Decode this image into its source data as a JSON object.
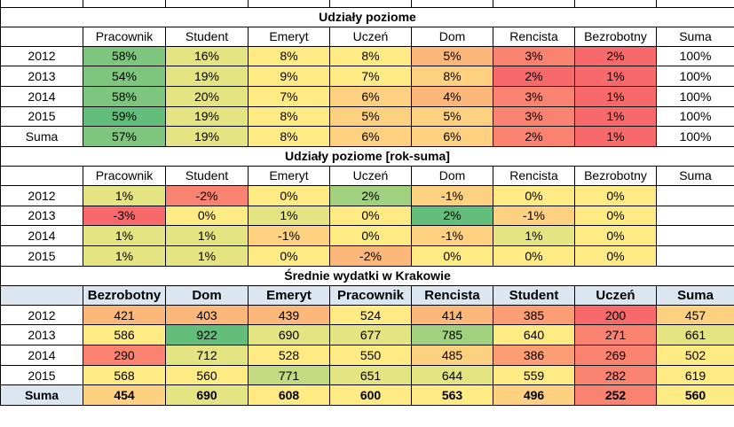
{
  "colors": {
    "g1": "#63be7b",
    "g2": "#7ec57d",
    "g3": "#a1d07f",
    "g4": "#c3da81",
    "y1": "#e5e483",
    "y2": "#ffeb84",
    "o1": "#fdd17f",
    "o2": "#fcb77a",
    "o3": "#fb9d75",
    "r1": "#f98370",
    "r2": "#f8696b",
    "w": "#ffffff",
    "sum": "#dce6f1"
  },
  "tables": [
    {
      "title": "Udziały poziome",
      "headers": [
        "Pracownik",
        "Student",
        "Emeryt",
        "Uczeń",
        "Dom",
        "Rencista",
        "Bezrobotny",
        "Suma"
      ],
      "header_style": "plain",
      "rows": [
        {
          "label": "2012",
          "cells": [
            {
              "v": "58%",
              "c": "g2"
            },
            {
              "v": "16%",
              "c": "y1"
            },
            {
              "v": "8%",
              "c": "y2"
            },
            {
              "v": "8%",
              "c": "y2"
            },
            {
              "v": "5%",
              "c": "o2"
            },
            {
              "v": "3%",
              "c": "r1"
            },
            {
              "v": "2%",
              "c": "r2"
            },
            {
              "v": "100%",
              "c": "w"
            }
          ]
        },
        {
          "label": "2013",
          "cells": [
            {
              "v": "54%",
              "c": "g2"
            },
            {
              "v": "19%",
              "c": "y1"
            },
            {
              "v": "9%",
              "c": "y2"
            },
            {
              "v": "7%",
              "c": "y2"
            },
            {
              "v": "8%",
              "c": "o1"
            },
            {
              "v": "2%",
              "c": "r2"
            },
            {
              "v": "1%",
              "c": "r2"
            },
            {
              "v": "100%",
              "c": "w"
            }
          ]
        },
        {
          "label": "2014",
          "cells": [
            {
              "v": "58%",
              "c": "g2"
            },
            {
              "v": "20%",
              "c": "y1"
            },
            {
              "v": "7%",
              "c": "y2"
            },
            {
              "v": "6%",
              "c": "o1"
            },
            {
              "v": "4%",
              "c": "o2"
            },
            {
              "v": "3%",
              "c": "r1"
            },
            {
              "v": "1%",
              "c": "r2"
            },
            {
              "v": "100%",
              "c": "w"
            }
          ]
        },
        {
          "label": "2015",
          "cells": [
            {
              "v": "59%",
              "c": "g1"
            },
            {
              "v": "19%",
              "c": "y1"
            },
            {
              "v": "8%",
              "c": "y2"
            },
            {
              "v": "5%",
              "c": "o1"
            },
            {
              "v": "5%",
              "c": "o1"
            },
            {
              "v": "3%",
              "c": "r1"
            },
            {
              "v": "1%",
              "c": "r2"
            },
            {
              "v": "100%",
              "c": "w"
            }
          ]
        },
        {
          "label": "Suma",
          "cells": [
            {
              "v": "57%",
              "c": "g2"
            },
            {
              "v": "19%",
              "c": "y1"
            },
            {
              "v": "8%",
              "c": "y2"
            },
            {
              "v": "6%",
              "c": "o1"
            },
            {
              "v": "6%",
              "c": "o1"
            },
            {
              "v": "2%",
              "c": "r1"
            },
            {
              "v": "1%",
              "c": "r2"
            },
            {
              "v": "100%",
              "c": "w"
            }
          ]
        }
      ]
    },
    {
      "title": "Udziały poziome [rok-suma]",
      "headers": [
        "Pracownik",
        "Student",
        "Emeryt",
        "Uczeń",
        "Dom",
        "Rencista",
        "Bezrobotny",
        "Suma"
      ],
      "header_style": "plain",
      "rows": [
        {
          "label": "2012",
          "cells": [
            {
              "v": "1%",
              "c": "y1"
            },
            {
              "v": "-2%",
              "c": "r1"
            },
            {
              "v": "0%",
              "c": "y2"
            },
            {
              "v": "2%",
              "c": "g3"
            },
            {
              "v": "-1%",
              "c": "o1"
            },
            {
              "v": "0%",
              "c": "y2"
            },
            {
              "v": "0%",
              "c": "y2"
            },
            {
              "v": "",
              "c": "w"
            }
          ]
        },
        {
          "label": "2013",
          "cells": [
            {
              "v": "-3%",
              "c": "r2"
            },
            {
              "v": "0%",
              "c": "y2"
            },
            {
              "v": "1%",
              "c": "y1"
            },
            {
              "v": "0%",
              "c": "y2"
            },
            {
              "v": "2%",
              "c": "g1"
            },
            {
              "v": "-1%",
              "c": "o1"
            },
            {
              "v": "0%",
              "c": "y2"
            },
            {
              "v": "",
              "c": "w"
            }
          ]
        },
        {
          "label": "2014",
          "cells": [
            {
              "v": "1%",
              "c": "y1"
            },
            {
              "v": "1%",
              "c": "y1"
            },
            {
              "v": "-1%",
              "c": "o1"
            },
            {
              "v": "0%",
              "c": "y2"
            },
            {
              "v": "-1%",
              "c": "o1"
            },
            {
              "v": "1%",
              "c": "y1"
            },
            {
              "v": "0%",
              "c": "y2"
            },
            {
              "v": "",
              "c": "w"
            }
          ]
        },
        {
          "label": "2015",
          "cells": [
            {
              "v": "1%",
              "c": "y1"
            },
            {
              "v": "1%",
              "c": "y1"
            },
            {
              "v": "0%",
              "c": "y2"
            },
            {
              "v": "-2%",
              "c": "o2"
            },
            {
              "v": "0%",
              "c": "y2"
            },
            {
              "v": "0%",
              "c": "y2"
            },
            {
              "v": "0%",
              "c": "y2"
            },
            {
              "v": "",
              "c": "w"
            }
          ]
        }
      ]
    },
    {
      "title": "Średnie wydatki w Krakowie",
      "headers": [
        "Bezrobotny",
        "Dom",
        "Emeryt",
        "Pracownik",
        "Rencista",
        "Student",
        "Uczeń",
        "Suma"
      ],
      "header_style": "blue",
      "rows": [
        {
          "label": "2012",
          "cells": [
            {
              "v": "421",
              "c": "o2"
            },
            {
              "v": "403",
              "c": "o2"
            },
            {
              "v": "439",
              "c": "o2"
            },
            {
              "v": "524",
              "c": "y2"
            },
            {
              "v": "414",
              "c": "o2"
            },
            {
              "v": "385",
              "c": "o3"
            },
            {
              "v": "200",
              "c": "r2"
            },
            {
              "v": "457",
              "c": "o1"
            }
          ]
        },
        {
          "label": "2013",
          "cells": [
            {
              "v": "586",
              "c": "y2"
            },
            {
              "v": "922",
              "c": "g1"
            },
            {
              "v": "690",
              "c": "y1"
            },
            {
              "v": "677",
              "c": "y1"
            },
            {
              "v": "785",
              "c": "g3"
            },
            {
              "v": "640",
              "c": "y2"
            },
            {
              "v": "271",
              "c": "r1"
            },
            {
              "v": "661",
              "c": "y1"
            }
          ]
        },
        {
          "label": "2014",
          "cells": [
            {
              "v": "290",
              "c": "r1"
            },
            {
              "v": "712",
              "c": "y1"
            },
            {
              "v": "528",
              "c": "y2"
            },
            {
              "v": "550",
              "c": "y2"
            },
            {
              "v": "485",
              "c": "o1"
            },
            {
              "v": "386",
              "c": "o3"
            },
            {
              "v": "269",
              "c": "r1"
            },
            {
              "v": "502",
              "c": "y2"
            }
          ]
        },
        {
          "label": "2015",
          "cells": [
            {
              "v": "568",
              "c": "y2"
            },
            {
              "v": "560",
              "c": "y2"
            },
            {
              "v": "771",
              "c": "g4"
            },
            {
              "v": "651",
              "c": "y1"
            },
            {
              "v": "644",
              "c": "y1"
            },
            {
              "v": "559",
              "c": "y2"
            },
            {
              "v": "282",
              "c": "r1"
            },
            {
              "v": "619",
              "c": "y2"
            }
          ]
        },
        {
          "label": "Suma",
          "cells": [
            {
              "v": "454",
              "c": "o1"
            },
            {
              "v": "690",
              "c": "y1"
            },
            {
              "v": "608",
              "c": "y2"
            },
            {
              "v": "600",
              "c": "y2"
            },
            {
              "v": "563",
              "c": "y2"
            },
            {
              "v": "496",
              "c": "o1"
            },
            {
              "v": "252",
              "c": "r1"
            },
            {
              "v": "560",
              "c": "y2"
            }
          ],
          "bold": true
        }
      ]
    }
  ]
}
